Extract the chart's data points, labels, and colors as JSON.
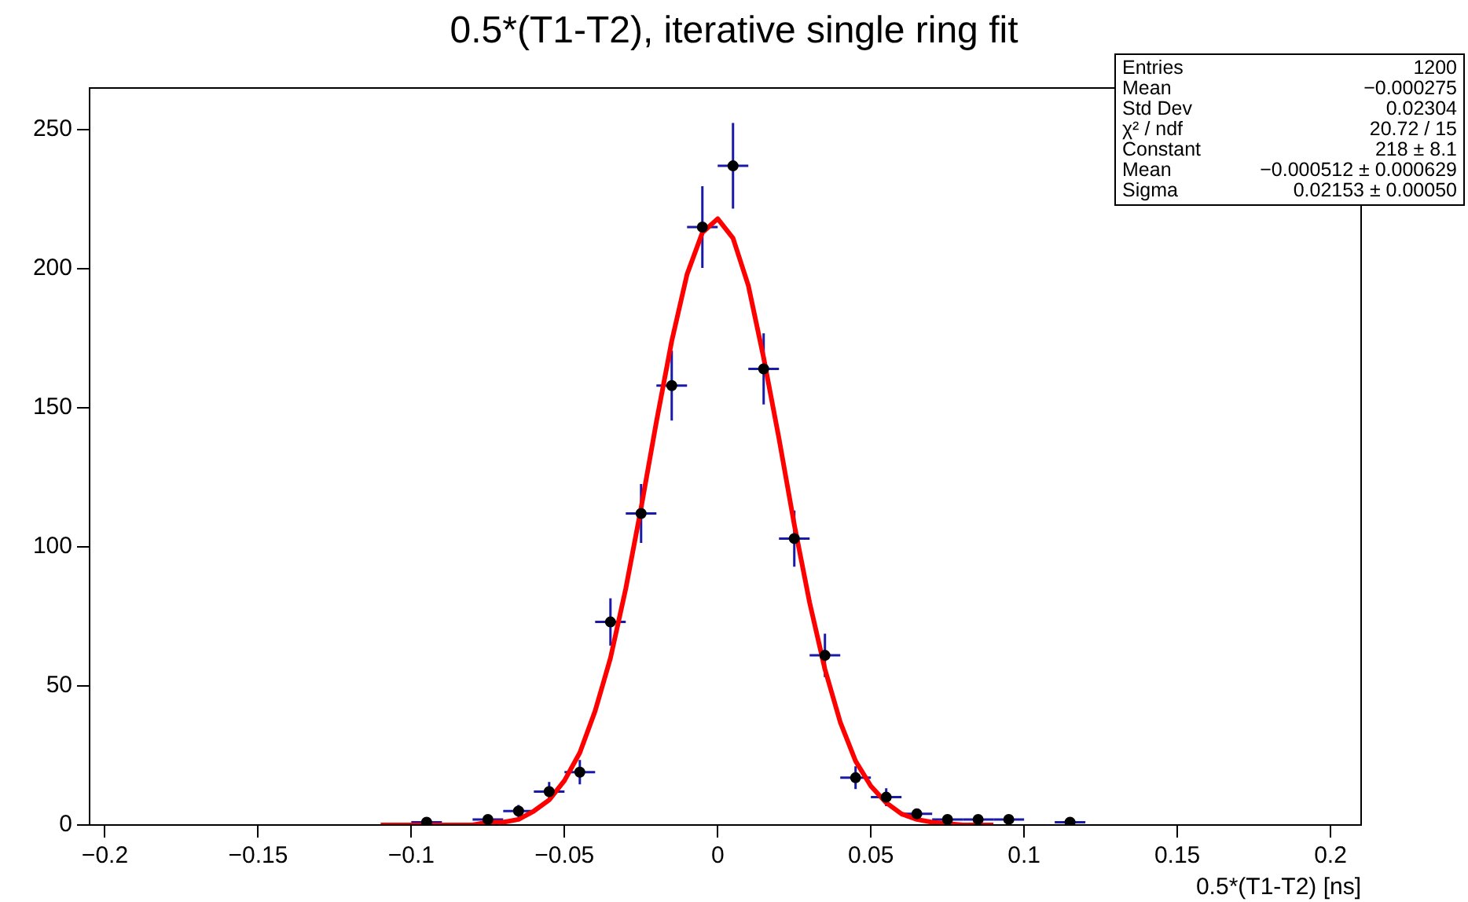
{
  "chart_data": {
    "type": "scatter",
    "title": "0.5*(T1-T2), iterative single ring fit",
    "xlabel": "0.5*(T1-T2) [ns]",
    "xlim": [
      -0.205,
      0.21
    ],
    "xticks": [
      {
        "value": -0.2,
        "label": "−0.2"
      },
      {
        "value": -0.15,
        "label": "−0.15"
      },
      {
        "value": -0.1,
        "label": "−0.1"
      },
      {
        "value": -0.05,
        "label": "−0.05"
      },
      0,
      0.05,
      0.1,
      0.15,
      0.2
    ],
    "ylim": [
      0,
      265
    ],
    "yticks": [
      0,
      50,
      100,
      150,
      200,
      250
    ],
    "grid": false,
    "legend": false,
    "series": [
      {
        "color": "#000000",
        "marker": "circle",
        "x": [
          -0.095,
          -0.075,
          -0.065,
          -0.055,
          -0.045,
          -0.035,
          -0.025,
          -0.015,
          -0.005,
          0.005,
          0.015,
          0.025,
          0.035,
          0.045,
          0.055,
          0.065,
          0.075,
          0.085,
          0.095,
          0.115
        ],
        "values": [
          1,
          2,
          5,
          12,
          19,
          73,
          112,
          158,
          215,
          237,
          164,
          103,
          61,
          17,
          10,
          4,
          2,
          2,
          2,
          1
        ],
        "errors": [
          1,
          null,
          2.2,
          3.5,
          4.4,
          8.5,
          10.6,
          12.6,
          14.7,
          15.4,
          12.8,
          10.1,
          7.8,
          4.1,
          3.2,
          null,
          null,
          null,
          null,
          1
        ],
        "xerrors": [
          0.005,
          0.005,
          0.005,
          0.005,
          0.005,
          0.005,
          0.005,
          0.005,
          0.005,
          0.005,
          0.005,
          0.005,
          0.005,
          0.005,
          0.005,
          0.005,
          0.005,
          0.005,
          0.005,
          0.005
        ]
      },
      {
        "type": "line",
        "color": "#ff0000",
        "marker": "none",
        "line_style": "solid",
        "x": [
          -0.11,
          -0.1,
          -0.09,
          -0.08,
          -0.075,
          -0.07,
          -0.065,
          -0.06,
          -0.055,
          -0.05,
          -0.045,
          -0.04,
          -0.035,
          -0.03,
          -0.025,
          -0.02,
          -0.015,
          -0.01,
          -0.005,
          0,
          0.005,
          0.01,
          0.015,
          0.02,
          0.025,
          0.03,
          0.035,
          0.04,
          0.045,
          0.05,
          0.055,
          0.06,
          0.065,
          0.07,
          0.08,
          0.09
        ],
        "values": [
          0,
          0,
          0,
          0,
          1,
          1,
          2,
          5,
          9,
          16,
          26,
          41,
          60,
          85,
          114,
          145,
          174,
          198,
          213,
          218,
          211,
          194,
          168,
          139,
          108,
          80,
          56,
          37,
          23,
          14,
          8,
          4,
          2,
          1,
          0,
          0
        ]
      }
    ],
    "annotations": [
      "Entries\t1200",
      "Mean\t−0.000275",
      "Std Dev\t0.02304",
      "χ² / ndf\t20.72 / 15",
      "Constant\t218 ± 8.1",
      "Mean\t−0.000512 ± 0.000629",
      "Sigma\t0.02153 ± 0.00050"
    ]
  }
}
